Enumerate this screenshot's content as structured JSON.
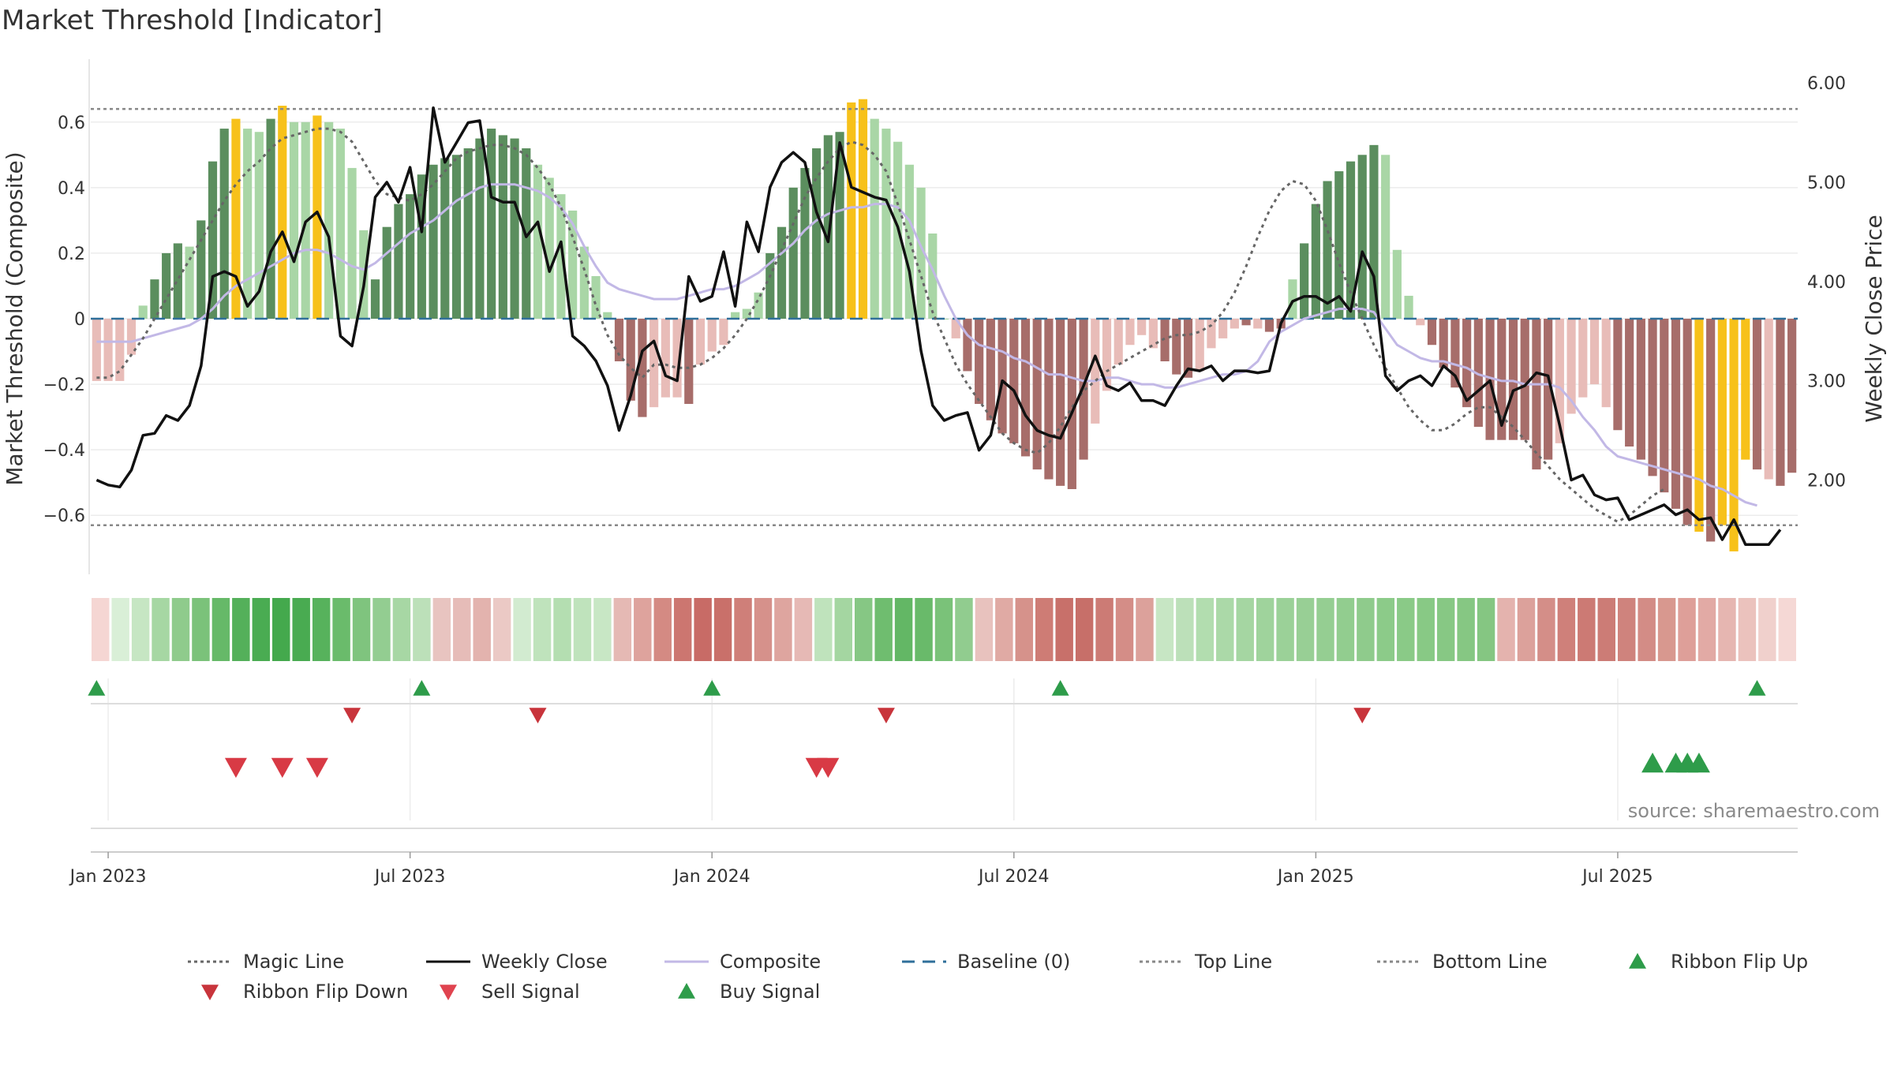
{
  "title": "Market Threshold [Indicator]",
  "source": "source: sharemaestro.com",
  "colors": {
    "dark_green": "#5b8e5e",
    "light_green": "#a9d6a6",
    "dark_red": "#a76d6a",
    "light_red": "#e8bcb8",
    "gold": "#f7c11a",
    "weekly_close": "#111111",
    "composite": "#c2b8e6",
    "magic_line": "#666666",
    "baseline": "#2f6f9a",
    "threshold_lines": "#888888",
    "buy_marker": "#2e9c4a",
    "sell_marker": "#d83a45"
  },
  "chart_data": {
    "type": "bar",
    "x_axis": {
      "tick_labels": [
        "Jan 2023",
        "Jul 2023",
        "Jan 2024",
        "Jul 2024",
        "Jan 2025",
        "Jul 2025"
      ],
      "tick_weeks": [
        1,
        27,
        53,
        79,
        105,
        131
      ]
    },
    "y_left": {
      "label": "Market Threshold (Composite)",
      "ticks": [
        "0.6",
        "0.4",
        "0.2",
        "0",
        "−0.2",
        "−0.4",
        "−0.6"
      ],
      "tick_values": [
        0.6,
        0.4,
        0.2,
        0,
        -0.2,
        -0.4,
        -0.6
      ],
      "range": [
        -0.78,
        0.78
      ]
    },
    "y_right": {
      "label": "Weekly Close Price",
      "ticks": [
        "6.00",
        "5.00",
        "4.00",
        "3.00",
        "2.00"
      ],
      "tick_values": [
        6,
        5,
        4,
        3,
        2
      ],
      "range": [
        1.05,
        6.2
      ]
    },
    "top_line": 0.64,
    "bottom_line": -0.63,
    "bars": [
      -0.19,
      -0.19,
      -0.19,
      -0.11,
      0.04,
      0.12,
      0.2,
      0.23,
      0.22,
      0.3,
      0.48,
      0.58,
      0.61,
      0.58,
      0.57,
      0.61,
      0.65,
      0.6,
      0.6,
      0.62,
      0.6,
      0.58,
      0.46,
      0.27,
      0.12,
      0.28,
      0.35,
      0.38,
      0.44,
      0.47,
      0.49,
      0.5,
      0.52,
      0.55,
      0.58,
      0.56,
      0.55,
      0.52,
      0.47,
      0.43,
      0.38,
      0.33,
      0.22,
      0.13,
      0.02,
      -0.13,
      -0.25,
      -0.3,
      -0.27,
      -0.24,
      -0.24,
      -0.26,
      -0.14,
      -0.1,
      -0.08,
      0.02,
      0.03,
      0.08,
      0.2,
      0.28,
      0.4,
      0.46,
      0.52,
      0.56,
      0.57,
      0.66,
      0.67,
      0.61,
      0.58,
      0.54,
      0.47,
      0.4,
      0.26,
      0.0,
      -0.06,
      -0.16,
      -0.26,
      -0.31,
      -0.35,
      -0.38,
      -0.42,
      -0.46,
      -0.49,
      -0.51,
      -0.52,
      -0.43,
      -0.32,
      -0.22,
      -0.14,
      -0.08,
      -0.05,
      -0.09,
      -0.13,
      -0.17,
      -0.18,
      -0.16,
      -0.09,
      -0.06,
      -0.03,
      -0.02,
      -0.03,
      -0.04,
      -0.03,
      0.12,
      0.23,
      0.35,
      0.42,
      0.45,
      0.48,
      0.5,
      0.53,
      0.5,
      0.21,
      0.07,
      -0.02,
      -0.08,
      -0.15,
      -0.21,
      -0.27,
      -0.33,
      -0.37,
      -0.37,
      -0.37,
      -0.37,
      -0.46,
      -0.43,
      -0.38,
      -0.29,
      -0.24,
      -0.2,
      -0.27,
      -0.34,
      -0.39,
      -0.43,
      -0.48,
      -0.53,
      -0.58,
      -0.63,
      -0.65,
      -0.68,
      -0.63,
      -0.71,
      -0.43,
      -0.46,
      -0.49,
      -0.51,
      -0.47
    ],
    "bar_colors": [
      "lr",
      "lr",
      "lr",
      "lr",
      "lg",
      "dg",
      "dg",
      "dg",
      "lg",
      "dg",
      "dg",
      "dg",
      "go",
      "lg",
      "lg",
      "dg",
      "go",
      "lg",
      "lg",
      "go",
      "lg",
      "lg",
      "lg",
      "lg",
      "dg",
      "dg",
      "dg",
      "dg",
      "dg",
      "dg",
      "dg",
      "dg",
      "dg",
      "dg",
      "dg",
      "dg",
      "dg",
      "dg",
      "lg",
      "lg",
      "lg",
      "lg",
      "lg",
      "lg",
      "lg",
      "dr",
      "dr",
      "dr",
      "lr",
      "lr",
      "lr",
      "dr",
      "lr",
      "lr",
      "lr",
      "lg",
      "lg",
      "lg",
      "dg",
      "dg",
      "dg",
      "dg",
      "dg",
      "dg",
      "dg",
      "go",
      "go",
      "lg",
      "lg",
      "lg",
      "lg",
      "lg",
      "lg",
      "lg",
      "lr",
      "dr",
      "dr",
      "dr",
      "dr",
      "dr",
      "dr",
      "dr",
      "dr",
      "dr",
      "dr",
      "dr",
      "lr",
      "lr",
      "lr",
      "lr",
      "lr",
      "lr",
      "dr",
      "dr",
      "dr",
      "lr",
      "lr",
      "lr",
      "lr",
      "dr",
      "lr",
      "dr",
      "dr",
      "lg",
      "dg",
      "dg",
      "dg",
      "dg",
      "dg",
      "dg",
      "dg",
      "lg",
      "lg",
      "lg",
      "lr",
      "dr",
      "dr",
      "dr",
      "dr",
      "dr",
      "dr",
      "dr",
      "dr",
      "dr",
      "dr",
      "dr",
      "lr",
      "lr",
      "lr",
      "lr",
      "lr",
      "dr",
      "dr",
      "dr",
      "dr",
      "dr",
      "dr",
      "dr",
      "go",
      "dr",
      "go",
      "go",
      "go",
      "dr",
      "lr",
      "dr",
      "dr",
      "lr"
    ],
    "weekly_close": [
      2.0,
      1.95,
      1.93,
      2.1,
      2.45,
      2.47,
      2.65,
      2.6,
      2.75,
      3.15,
      4.05,
      4.1,
      4.05,
      3.75,
      3.9,
      4.3,
      4.5,
      4.2,
      4.6,
      4.7,
      4.45,
      3.45,
      3.35,
      3.95,
      4.85,
      5.0,
      4.8,
      5.15,
      4.5,
      5.75,
      5.2,
      5.4,
      5.6,
      5.62,
      4.85,
      4.8,
      4.8,
      4.45,
      4.6,
      4.1,
      4.4,
      3.45,
      3.35,
      3.2,
      2.95,
      2.5,
      2.85,
      3.3,
      3.4,
      3.05,
      3.0,
      4.05,
      3.8,
      3.85,
      4.3,
      3.75,
      4.6,
      4.3,
      4.95,
      5.2,
      5.3,
      5.2,
      4.7,
      4.4,
      5.4,
      4.95,
      4.9,
      4.85,
      4.82,
      4.55,
      4.1,
      3.3,
      2.75,
      2.6,
      2.65,
      2.68,
      2.3,
      2.45,
      3.0,
      2.9,
      2.65,
      2.5,
      2.45,
      2.42,
      2.68,
      2.95,
      3.25,
      2.95,
      2.9,
      2.98,
      2.8,
      2.8,
      2.75,
      2.95,
      3.12,
      3.1,
      3.15,
      3.0,
      3.1,
      3.1,
      3.08,
      3.1,
      3.58,
      3.8,
      3.85,
      3.85,
      3.78,
      3.85,
      3.7,
      4.3,
      4.05,
      3.05,
      2.9,
      3.0,
      3.05,
      2.95,
      3.15,
      3.05,
      2.8,
      2.9,
      3.0,
      2.55,
      2.9,
      2.95,
      3.08,
      3.05,
      2.55,
      2.0,
      2.05,
      1.85,
      1.8,
      1.82,
      1.6,
      1.65,
      1.7,
      1.75,
      1.65,
      1.7,
      1.6,
      1.62,
      1.4,
      1.6,
      1.35,
      1.35,
      1.35,
      1.5
    ],
    "composite": [
      -0.07,
      -0.07,
      -0.07,
      -0.07,
      -0.06,
      -0.05,
      -0.04,
      -0.03,
      -0.02,
      0.0,
      0.03,
      0.07,
      0.1,
      0.12,
      0.14,
      0.16,
      0.18,
      0.2,
      0.21,
      0.21,
      0.2,
      0.18,
      0.16,
      0.15,
      0.17,
      0.2,
      0.23,
      0.26,
      0.28,
      0.3,
      0.33,
      0.36,
      0.38,
      0.4,
      0.41,
      0.41,
      0.41,
      0.4,
      0.39,
      0.37,
      0.34,
      0.29,
      0.22,
      0.16,
      0.11,
      0.09,
      0.08,
      0.07,
      0.06,
      0.06,
      0.06,
      0.07,
      0.08,
      0.09,
      0.09,
      0.1,
      0.12,
      0.14,
      0.17,
      0.2,
      0.23,
      0.27,
      0.3,
      0.32,
      0.33,
      0.34,
      0.34,
      0.35,
      0.35,
      0.34,
      0.3,
      0.22,
      0.15,
      0.07,
      0.0,
      -0.05,
      -0.08,
      -0.09,
      -0.1,
      -0.12,
      -0.13,
      -0.15,
      -0.17,
      -0.17,
      -0.18,
      -0.19,
      -0.19,
      -0.18,
      -0.18,
      -0.19,
      -0.2,
      -0.2,
      -0.21,
      -0.21,
      -0.2,
      -0.19,
      -0.18,
      -0.17,
      -0.17,
      -0.16,
      -0.13,
      -0.07,
      -0.04,
      -0.02,
      0.0,
      0.01,
      0.02,
      0.03,
      0.03,
      0.03,
      0.02,
      -0.03,
      -0.08,
      -0.1,
      -0.12,
      -0.13,
      -0.13,
      -0.14,
      -0.15,
      -0.17,
      -0.18,
      -0.19,
      -0.19,
      -0.2,
      -0.2,
      -0.2,
      -0.21,
      -0.25,
      -0.3,
      -0.34,
      -0.39,
      -0.42,
      -0.43,
      -0.44,
      -0.45,
      -0.46,
      -0.47,
      -0.48,
      -0.49,
      -0.51,
      -0.52,
      -0.54,
      -0.56,
      -0.57
    ],
    "magic_line": [
      -0.18,
      -0.18,
      -0.16,
      -0.11,
      -0.06,
      0.0,
      0.06,
      0.12,
      0.18,
      0.24,
      0.3,
      0.36,
      0.41,
      0.45,
      0.48,
      0.52,
      0.55,
      0.56,
      0.57,
      0.58,
      0.58,
      0.57,
      0.54,
      0.48,
      0.42,
      0.38,
      0.37,
      0.36,
      0.38,
      0.41,
      0.45,
      0.49,
      0.51,
      0.52,
      0.53,
      0.53,
      0.52,
      0.5,
      0.46,
      0.41,
      0.34,
      0.25,
      0.15,
      0.04,
      -0.05,
      -0.11,
      -0.15,
      -0.18,
      -0.14,
      -0.14,
      -0.15,
      -0.15,
      -0.14,
      -0.12,
      -0.09,
      -0.05,
      0.0,
      0.06,
      0.13,
      0.21,
      0.29,
      0.37,
      0.43,
      0.48,
      0.52,
      0.54,
      0.53,
      0.5,
      0.45,
      0.35,
      0.24,
      0.13,
      0.02,
      -0.06,
      -0.14,
      -0.2,
      -0.25,
      -0.3,
      -0.35,
      -0.38,
      -0.4,
      -0.41,
      -0.38,
      -0.33,
      -0.27,
      -0.22,
      -0.19,
      -0.16,
      -0.14,
      -0.12,
      -0.1,
      -0.08,
      -0.06,
      -0.05,
      -0.05,
      -0.04,
      -0.02,
      0.02,
      0.08,
      0.16,
      0.25,
      0.33,
      0.39,
      0.42,
      0.41,
      0.36,
      0.27,
      0.17,
      0.08,
      0.0,
      -0.08,
      -0.15,
      -0.21,
      -0.27,
      -0.31,
      -0.34,
      -0.34,
      -0.32,
      -0.29,
      -0.27,
      -0.27,
      -0.3,
      -0.33,
      -0.37,
      -0.41,
      -0.45,
      -0.49,
      -0.52,
      -0.55,
      -0.58,
      -0.6,
      -0.62,
      -0.6,
      -0.57,
      -0.54,
      -0.52
    ],
    "ribbon_colors": [
      "#f5d6d3",
      "#d9efd7",
      "#c6e6c3",
      "#a6d7a3",
      "#8fcb8c",
      "#7bc27a",
      "#66b968",
      "#54b05a",
      "#4aac52",
      "#44a94d",
      "#49ab51",
      "#57b25c",
      "#6abb6b",
      "#7fc47e",
      "#93cd91",
      "#a7d7a4",
      "#bce0b9",
      "#e8c4c0",
      "#e6bcb8",
      "#e3b3ae",
      "#ebc9c5",
      "#d2ebd0",
      "#bfe3bc",
      "#b4deb1",
      "#bfe3bc",
      "#c8e7c5",
      "#e5b9b4",
      "#dea39d",
      "#d48a83",
      "#cc7670",
      "#c86b66",
      "#c9706a",
      "#cf7f79",
      "#d6918b",
      "#dea59f",
      "#e6b9b5",
      "#bfe3bc",
      "#a4d6a1",
      "#86c784",
      "#6fbd6f",
      "#63b765",
      "#69ba6a",
      "#7ac279",
      "#91cc8f",
      "#e8c2be",
      "#e0aaa4",
      "#d6928b",
      "#ce7c75",
      "#c8706a",
      "#c76f69",
      "#cc7b75",
      "#d48d87",
      "#dca19b",
      "#c7e6c4",
      "#bce0b9",
      "#b2ddaf",
      "#abd9a8",
      "#a5d6a2",
      "#9fd39c",
      "#9bd198",
      "#98cf95",
      "#95ce92",
      "#92cd8f",
      "#8fcb8c",
      "#8ccb89",
      "#8aca87",
      "#88c985",
      "#87c884",
      "#86c783",
      "#85c682",
      "#e4b3ae",
      "#dca19b",
      "#d48e88",
      "#cf807a",
      "#cc7a74",
      "#cc7c76",
      "#cf837d",
      "#d38c86",
      "#d8988f",
      "#de9f99",
      "#e2aaa5",
      "#e6b6b1",
      "#ebc2bd",
      "#f0d0cc",
      "#f5d8d5"
    ],
    "ribbon_flips": [
      {
        "direction": "up",
        "week": 0
      },
      {
        "direction": "down",
        "week": 22
      },
      {
        "direction": "up",
        "week": 28
      },
      {
        "direction": "down",
        "week": 38
      },
      {
        "direction": "up",
        "week": 53
      },
      {
        "direction": "down",
        "week": 68
      },
      {
        "direction": "up",
        "week": 83
      },
      {
        "direction": "down",
        "week": 109
      },
      {
        "direction": "up",
        "week": 143
      }
    ],
    "sell_signals": [
      12,
      16,
      19,
      62,
      63
    ],
    "buy_signals": [
      134,
      136,
      137,
      138
    ],
    "legend": [
      {
        "label": "Magic Line",
        "style": "dotted",
        "color": "#666666"
      },
      {
        "label": "Weekly Close",
        "style": "solid",
        "color": "#111111"
      },
      {
        "label": "Composite",
        "style": "solid",
        "color": "#c2b8e6"
      },
      {
        "label": "Baseline (0)",
        "style": "dashed",
        "color": "#2f6f9a"
      },
      {
        "label": "Top Line",
        "style": "dotted",
        "color": "#888888"
      },
      {
        "label": "Bottom Line",
        "style": "dotted",
        "color": "#888888"
      },
      {
        "label": "Ribbon Flip Up",
        "style": "tri-up",
        "color": "#2e9c4a"
      },
      {
        "label": "Ribbon Flip Down",
        "style": "tri-down",
        "color": "#c8343b"
      },
      {
        "label": "Sell Signal",
        "style": "tri-down",
        "color": "#e0434f"
      },
      {
        "label": "Buy Signal",
        "style": "tri-up",
        "color": "#2e9c4a"
      }
    ]
  }
}
